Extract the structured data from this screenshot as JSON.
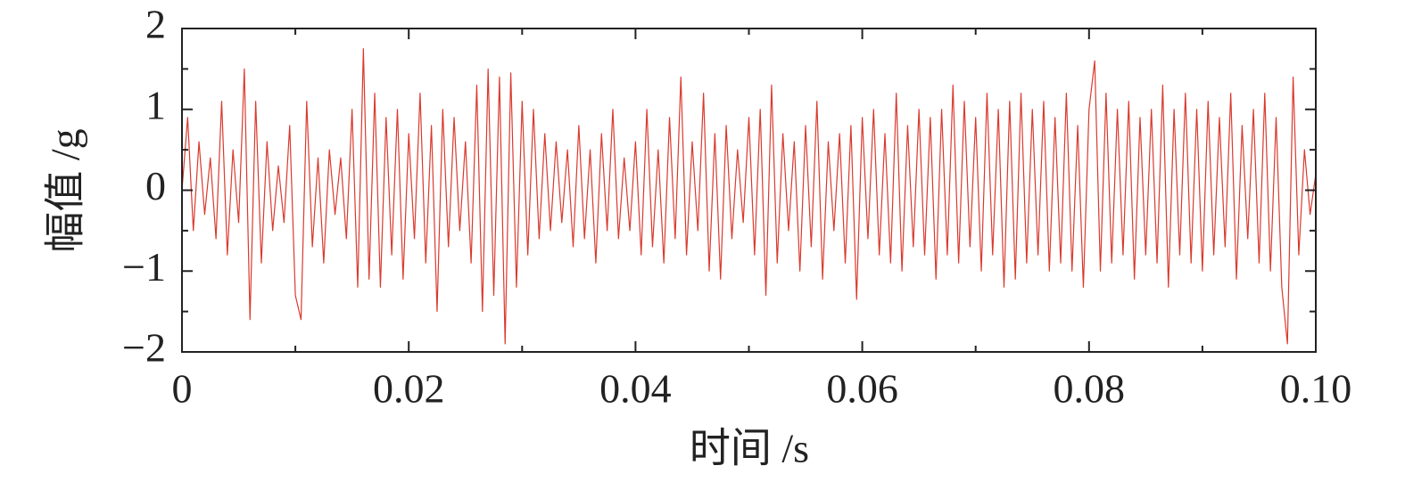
{
  "chart_data": {
    "type": "line",
    "xlabel": "时间 /s",
    "ylabel": "幅值 /g",
    "xlim": [
      0,
      0.1
    ],
    "ylim": [
      -2,
      2
    ],
    "xticks": [
      0,
      0.02,
      0.04,
      0.06,
      0.08,
      {
        "value": 0.1,
        "label": "0.10"
      }
    ],
    "yticks": [
      {
        "value": -2,
        "label": "−2"
      },
      {
        "value": -1,
        "label": "−1"
      },
      0,
      1,
      2
    ],
    "xminorticks": [
      0.01,
      0.03,
      0.05,
      0.07,
      0.09
    ],
    "yminorticks": [
      -1.5,
      -0.5,
      0.5,
      1.5
    ],
    "series": [
      {
        "color": "#d93a2e",
        "x": [
          0,
          0.0005,
          0.001,
          0.0015,
          0.002,
          0.0025,
          0.003,
          0.0035,
          0.004,
          0.0045,
          0.005,
          0.0055,
          0.006,
          0.0065,
          0.007,
          0.0075,
          0.008,
          0.0085,
          0.009,
          0.0095,
          0.01,
          0.0105,
          0.011,
          0.0115,
          0.012,
          0.0125,
          0.013,
          0.0135,
          0.014,
          0.0145,
          0.015,
          0.0155,
          0.016,
          0.0165,
          0.017,
          0.0175,
          0.018,
          0.0185,
          0.019,
          0.0195,
          0.02,
          0.0205,
          0.021,
          0.0215,
          0.022,
          0.0225,
          0.023,
          0.0235,
          0.024,
          0.0245,
          0.025,
          0.0255,
          0.026,
          0.0265,
          0.027,
          0.0275,
          0.028,
          0.0285,
          0.029,
          0.0295,
          0.03,
          0.0305,
          0.031,
          0.0315,
          0.032,
          0.0325,
          0.033,
          0.0335,
          0.034,
          0.0345,
          0.035,
          0.0355,
          0.036,
          0.0365,
          0.037,
          0.0375,
          0.038,
          0.0385,
          0.039,
          0.0395,
          0.04,
          0.0405,
          0.041,
          0.0415,
          0.042,
          0.0425,
          0.043,
          0.0435,
          0.044,
          0.0445,
          0.045,
          0.0455,
          0.046,
          0.0465,
          0.047,
          0.0475,
          0.048,
          0.0485,
          0.049,
          0.0495,
          0.05,
          0.0505,
          0.051,
          0.0515,
          0.052,
          0.0525,
          0.053,
          0.0535,
          0.054,
          0.0545,
          0.055,
          0.0555,
          0.056,
          0.0565,
          0.057,
          0.0575,
          0.058,
          0.0585,
          0.059,
          0.0595,
          0.06,
          0.0605,
          0.061,
          0.0615,
          0.062,
          0.0625,
          0.063,
          0.0635,
          0.064,
          0.0645,
          0.065,
          0.0655,
          0.066,
          0.0665,
          0.067,
          0.0675,
          0.068,
          0.0685,
          0.069,
          0.0695,
          0.07,
          0.0705,
          0.071,
          0.0715,
          0.072,
          0.0725,
          0.073,
          0.0735,
          0.074,
          0.0745,
          0.075,
          0.0755,
          0.076,
          0.0765,
          0.077,
          0.0775,
          0.078,
          0.0785,
          0.079,
          0.0795,
          0.08,
          0.0805,
          0.081,
          0.0815,
          0.082,
          0.0825,
          0.083,
          0.0835,
          0.084,
          0.0845,
          0.085,
          0.0855,
          0.086,
          0.0865,
          0.087,
          0.0875,
          0.088,
          0.0885,
          0.089,
          0.0895,
          0.09,
          0.0905,
          0.091,
          0.0915,
          0.092,
          0.0925,
          0.093,
          0.0935,
          0.094,
          0.0945,
          0.095,
          0.0955,
          0.096,
          0.0965,
          0.097,
          0.0975,
          0.098,
          0.0985,
          0.099,
          0.0995,
          0.1
        ],
        "values": [
          0,
          0.9,
          -0.5,
          0.6,
          -0.3,
          0.4,
          -0.6,
          1.1,
          -0.8,
          0.5,
          -0.4,
          1.5,
          -1.6,
          1.1,
          -0.9,
          0.6,
          -0.5,
          0.3,
          -0.4,
          0.8,
          -1.3,
          -1.6,
          1.1,
          -0.7,
          0.4,
          -0.9,
          0.5,
          -0.3,
          0.4,
          -0.6,
          1.0,
          -1.2,
          1.75,
          -1.1,
          1.2,
          -1.2,
          0.9,
          -0.8,
          1.0,
          -1.1,
          0.7,
          -0.6,
          1.2,
          -0.9,
          0.8,
          -1.5,
          1.0,
          -0.7,
          0.9,
          -0.5,
          0.6,
          -0.9,
          1.3,
          -1.5,
          1.5,
          -1.3,
          1.4,
          -1.9,
          1.45,
          -1.2,
          1.1,
          -0.8,
          1.0,
          -0.6,
          0.7,
          -0.5,
          0.6,
          -0.4,
          0.5,
          -0.7,
          0.8,
          -0.6,
          0.5,
          -0.9,
          0.7,
          -0.5,
          1.0,
          -0.6,
          0.4,
          -0.5,
          0.6,
          -0.8,
          1.0,
          -0.7,
          0.5,
          -0.9,
          0.9,
          -0.6,
          1.4,
          -0.8,
          0.6,
          -0.5,
          1.2,
          -1.0,
          0.7,
          -1.1,
          0.8,
          -0.6,
          0.5,
          -0.4,
          0.9,
          -0.8,
          1.0,
          -1.3,
          1.3,
          -0.9,
          0.7,
          -0.5,
          0.6,
          -1.0,
          0.8,
          -0.7,
          1.1,
          -1.1,
          0.6,
          -0.5,
          0.7,
          -0.9,
          0.8,
          -1.35,
          0.9,
          -0.6,
          1.0,
          -0.8,
          0.7,
          -0.9,
          1.2,
          -1.0,
          0.8,
          -0.7,
          1.0,
          -0.8,
          0.9,
          -1.1,
          1.0,
          -0.8,
          1.3,
          -0.9,
          1.1,
          -0.7,
          0.9,
          -1.0,
          1.2,
          -0.8,
          1.0,
          -1.2,
          1.1,
          -1.1,
          1.2,
          -0.9,
          1.0,
          -0.8,
          1.1,
          -1.0,
          0.9,
          -0.9,
          1.2,
          -1.0,
          0.8,
          -1.2,
          1.0,
          1.6,
          -1.0,
          1.2,
          -0.9,
          1.0,
          -0.8,
          1.1,
          -1.1,
          0.9,
          -0.8,
          1.0,
          -0.9,
          1.3,
          -1.2,
          1.0,
          -0.8,
          1.2,
          -0.9,
          1.0,
          -1.0,
          1.1,
          -0.8,
          0.9,
          -0.7,
          1.2,
          -1.1,
          0.8,
          -0.6,
          1.0,
          -0.9,
          1.2,
          -1.0,
          0.9,
          -1.2,
          -1.9,
          1.4,
          -0.8,
          0.5,
          -0.3,
          0.2
        ]
      }
    ]
  }
}
